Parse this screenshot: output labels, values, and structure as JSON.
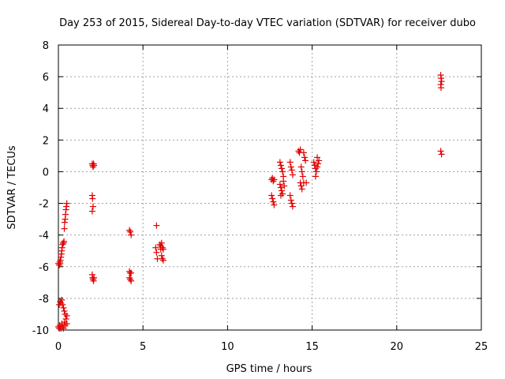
{
  "chart_data": {
    "type": "scatter",
    "title": "Day 253 of 2015, Sidereal Day-to-day VTEC variation (SDTVAR) for receiver dubo",
    "xlabel": "GPS time / hours",
    "ylabel": "SDTVAR / TECUs",
    "xlim": [
      0,
      25
    ],
    "ylim": [
      -10,
      8
    ],
    "x_ticks": [
      0,
      5,
      10,
      15,
      20,
      25
    ],
    "y_ticks": [
      -10,
      -8,
      -6,
      -4,
      -2,
      0,
      2,
      4,
      6,
      8
    ],
    "grid": true,
    "marker": "+",
    "color": "#e00000",
    "series": [
      {
        "name": "SDTVAR",
        "points": [
          [
            0.0,
            -5.8
          ],
          [
            0.05,
            -5.9
          ],
          [
            0.08,
            -5.7
          ],
          [
            0.1,
            -5.8
          ],
          [
            0.12,
            -5.6
          ],
          [
            0.15,
            -5.4
          ],
          [
            0.18,
            -5.2
          ],
          [
            0.2,
            -5.0
          ],
          [
            0.22,
            -4.8
          ],
          [
            0.25,
            -4.6
          ],
          [
            0.28,
            -4.5
          ],
          [
            0.3,
            -4.5
          ],
          [
            0.33,
            -4.4
          ],
          [
            0.35,
            -3.6
          ],
          [
            0.37,
            -3.2
          ],
          [
            0.4,
            -3.0
          ],
          [
            0.42,
            -2.7
          ],
          [
            0.45,
            -2.4
          ],
          [
            0.47,
            -2.2
          ],
          [
            0.5,
            -2.0
          ],
          [
            0.0,
            -9.8
          ],
          [
            0.05,
            -9.9
          ],
          [
            0.08,
            -9.7
          ],
          [
            0.1,
            -9.8
          ],
          [
            0.15,
            -9.9
          ],
          [
            0.2,
            -9.6
          ],
          [
            0.25,
            -9.8
          ],
          [
            0.3,
            -9.9
          ],
          [
            0.35,
            -9.5
          ],
          [
            0.4,
            -9.7
          ],
          [
            0.45,
            -9.3
          ],
          [
            0.5,
            -9.6
          ],
          [
            0.5,
            -9.1
          ],
          [
            0.05,
            -8.4
          ],
          [
            0.1,
            -8.2
          ],
          [
            0.15,
            -8.3
          ],
          [
            0.2,
            -8.1
          ],
          [
            0.25,
            -8.4
          ],
          [
            0.3,
            -8.6
          ],
          [
            0.35,
            -8.8
          ],
          [
            0.4,
            -9.0
          ],
          [
            2.0,
            0.5
          ],
          [
            2.02,
            0.4
          ],
          [
            2.05,
            0.3
          ],
          [
            2.08,
            0.5
          ],
          [
            2.1,
            0.4
          ],
          [
            2.0,
            -1.5
          ],
          [
            2.02,
            -1.7
          ],
          [
            2.05,
            -2.2
          ],
          [
            2.0,
            -2.5
          ],
          [
            2.0,
            -6.5
          ],
          [
            2.02,
            -6.7
          ],
          [
            2.05,
            -6.8
          ],
          [
            2.08,
            -6.9
          ],
          [
            2.1,
            -6.7
          ],
          [
            4.2,
            -3.7
          ],
          [
            4.25,
            -3.8
          ],
          [
            4.3,
            -4.0
          ],
          [
            4.2,
            -6.3
          ],
          [
            4.25,
            -6.4
          ],
          [
            4.3,
            -6.4
          ],
          [
            4.2,
            -6.7
          ],
          [
            4.25,
            -6.8
          ],
          [
            4.3,
            -6.9
          ],
          [
            5.8,
            -3.4
          ],
          [
            5.75,
            -4.8
          ],
          [
            5.8,
            -5.1
          ],
          [
            5.85,
            -5.5
          ],
          [
            6.0,
            -4.6
          ],
          [
            6.05,
            -4.7
          ],
          [
            6.1,
            -4.5
          ],
          [
            6.15,
            -4.8
          ],
          [
            6.2,
            -4.9
          ],
          [
            6.1,
            -5.3
          ],
          [
            6.15,
            -5.5
          ],
          [
            6.2,
            -5.6
          ],
          [
            6.05,
            -4.9
          ],
          [
            12.6,
            -0.5
          ],
          [
            12.65,
            -0.4
          ],
          [
            12.7,
            -0.6
          ],
          [
            12.75,
            -0.5
          ],
          [
            12.6,
            -1.5
          ],
          [
            12.65,
            -1.7
          ],
          [
            12.7,
            -1.9
          ],
          [
            12.75,
            -2.1
          ],
          [
            13.1,
            0.6
          ],
          [
            13.15,
            0.4
          ],
          [
            13.2,
            0.2
          ],
          [
            13.25,
            0.0
          ],
          [
            13.3,
            -0.3
          ],
          [
            13.1,
            -0.8
          ],
          [
            13.15,
            -1.0
          ],
          [
            13.2,
            -1.2
          ],
          [
            13.25,
            -1.4
          ],
          [
            13.3,
            -0.6
          ],
          [
            13.35,
            -0.9
          ],
          [
            13.15,
            -1.5
          ],
          [
            13.7,
            0.6
          ],
          [
            13.75,
            0.3
          ],
          [
            13.8,
            0.1
          ],
          [
            13.85,
            -0.2
          ],
          [
            13.7,
            -1.5
          ],
          [
            13.75,
            -1.8
          ],
          [
            13.8,
            -2.0
          ],
          [
            13.85,
            -2.2
          ],
          [
            14.2,
            1.3
          ],
          [
            14.25,
            1.2
          ],
          [
            14.3,
            1.4
          ],
          [
            14.35,
            0.3
          ],
          [
            14.4,
            0.0
          ],
          [
            14.45,
            -0.3
          ],
          [
            14.3,
            -0.7
          ],
          [
            14.35,
            -0.9
          ],
          [
            14.4,
            -1.1
          ],
          [
            14.5,
            -0.7
          ],
          [
            14.55,
            0.9
          ],
          [
            14.6,
            0.7
          ],
          [
            14.65,
            -0.7
          ],
          [
            14.5,
            1.2
          ],
          [
            15.1,
            0.6
          ],
          [
            15.15,
            0.4
          ],
          [
            15.2,
            0.2
          ],
          [
            15.25,
            0.0
          ],
          [
            15.3,
            0.9
          ],
          [
            15.35,
            0.5
          ],
          [
            15.4,
            0.7
          ],
          [
            15.2,
            -0.3
          ],
          [
            15.3,
            0.3
          ],
          [
            22.6,
            6.1
          ],
          [
            22.62,
            5.9
          ],
          [
            22.65,
            5.7
          ],
          [
            22.6,
            5.5
          ],
          [
            22.62,
            5.3
          ],
          [
            22.6,
            1.3
          ],
          [
            22.65,
            1.1
          ]
        ]
      }
    ]
  }
}
